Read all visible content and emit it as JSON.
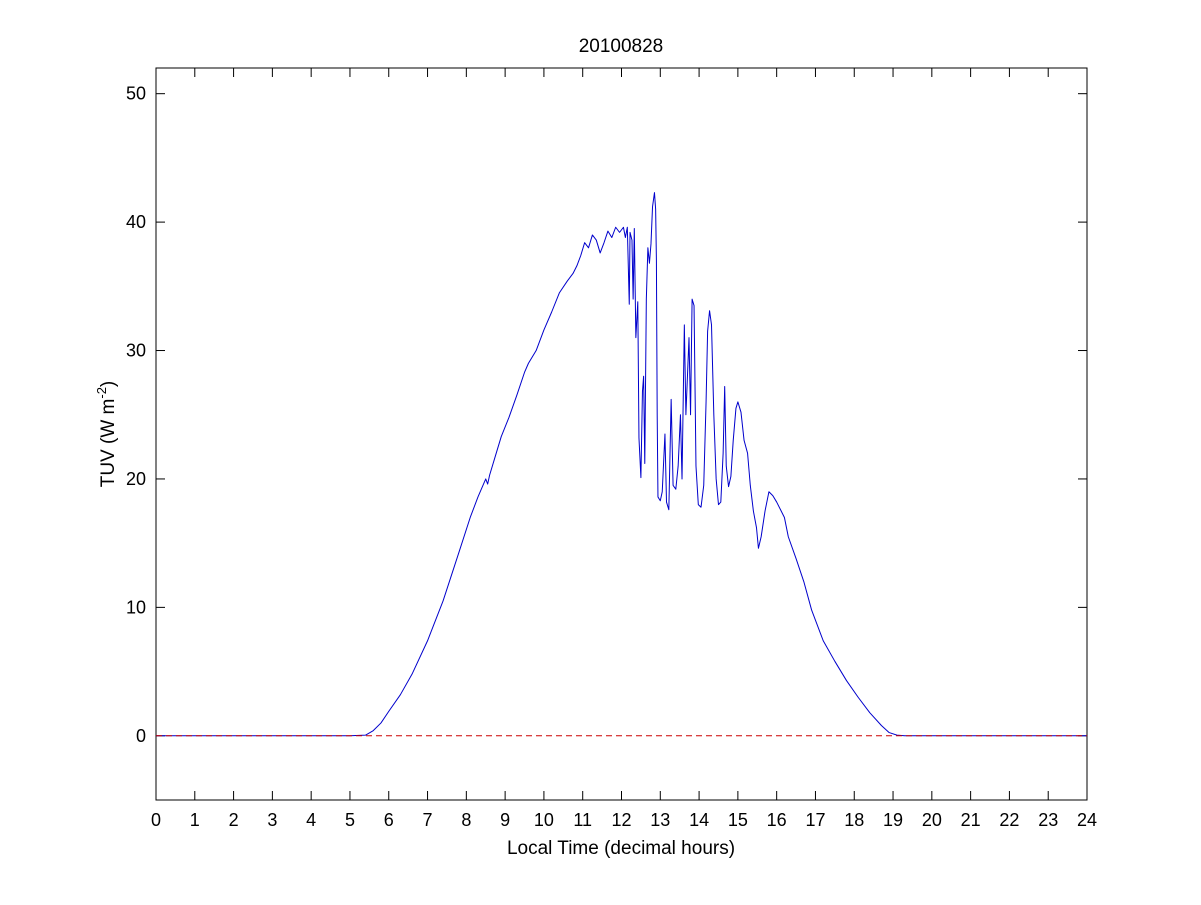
{
  "chart_data": {
    "type": "line",
    "title": "20100828",
    "xlabel": "Local Time (decimal hours)",
    "ylabel_main": "TUV (W m",
    "ylabel_sup": "-2",
    "ylabel_close": ")",
    "xlim": [
      0,
      24
    ],
    "ylim": [
      -5,
      52
    ],
    "x_ticks": [
      0,
      1,
      2,
      3,
      4,
      5,
      6,
      7,
      8,
      9,
      10,
      11,
      12,
      13,
      14,
      15,
      16,
      17,
      18,
      19,
      20,
      21,
      22,
      23,
      24
    ],
    "x_tick_labels": [
      "0",
      "1",
      "2",
      "3",
      "4",
      "5",
      "6",
      "7",
      "8",
      "9",
      "10",
      "11",
      "12",
      "13",
      "14",
      "15",
      "16",
      "17",
      "18",
      "19",
      "20",
      "21",
      "22",
      "23",
      "24"
    ],
    "y_ticks": [
      0,
      10,
      20,
      30,
      40,
      50
    ],
    "y_tick_labels": [
      "0",
      "10",
      "20",
      "30",
      "40",
      "50"
    ],
    "grid": false,
    "series": [
      {
        "color": "#0000cc",
        "style": "solid",
        "points": [
          [
            0,
            0
          ],
          [
            5.0,
            0
          ],
          [
            5.4,
            0.05
          ],
          [
            5.6,
            0.4
          ],
          [
            5.8,
            1.0
          ],
          [
            6.0,
            1.9
          ],
          [
            6.3,
            3.2
          ],
          [
            6.6,
            4.8
          ],
          [
            7.0,
            7.4
          ],
          [
            7.4,
            10.5
          ],
          [
            7.8,
            14.2
          ],
          [
            8.1,
            17.0
          ],
          [
            8.3,
            18.6
          ],
          [
            8.5,
            20.0
          ],
          [
            8.55,
            19.6
          ],
          [
            8.6,
            20.3
          ],
          [
            8.75,
            21.8
          ],
          [
            8.9,
            23.3
          ],
          [
            9.1,
            24.8
          ],
          [
            9.3,
            26.5
          ],
          [
            9.5,
            28.3
          ],
          [
            9.6,
            29.0
          ],
          [
            9.8,
            30.0
          ],
          [
            10.0,
            31.6
          ],
          [
            10.2,
            33.0
          ],
          [
            10.4,
            34.5
          ],
          [
            10.6,
            35.4
          ],
          [
            10.75,
            36.0
          ],
          [
            10.85,
            36.6
          ],
          [
            10.95,
            37.4
          ],
          [
            11.05,
            38.4
          ],
          [
            11.15,
            38.0
          ],
          [
            11.25,
            39.0
          ],
          [
            11.35,
            38.6
          ],
          [
            11.45,
            37.6
          ],
          [
            11.55,
            38.4
          ],
          [
            11.65,
            39.3
          ],
          [
            11.75,
            38.8
          ],
          [
            11.85,
            39.6
          ],
          [
            11.95,
            39.2
          ],
          [
            12.05,
            39.6
          ],
          [
            12.1,
            38.8
          ],
          [
            12.15,
            39.6
          ],
          [
            12.2,
            33.6
          ],
          [
            12.22,
            39.2
          ],
          [
            12.27,
            38.6
          ],
          [
            12.3,
            34.0
          ],
          [
            12.33,
            39.5
          ],
          [
            12.37,
            31.0
          ],
          [
            12.42,
            33.8
          ],
          [
            12.45,
            23.2
          ],
          [
            12.5,
            20.1
          ],
          [
            12.54,
            26.8
          ],
          [
            12.57,
            28.0
          ],
          [
            12.6,
            21.2
          ],
          [
            12.64,
            34.0
          ],
          [
            12.68,
            38.0
          ],
          [
            12.72,
            36.8
          ],
          [
            12.76,
            38.3
          ],
          [
            12.8,
            41.2
          ],
          [
            12.85,
            42.3
          ],
          [
            12.88,
            41.0
          ],
          [
            12.9,
            37.0
          ],
          [
            12.92,
            25.0
          ],
          [
            12.94,
            18.6
          ],
          [
            13.0,
            18.3
          ],
          [
            13.05,
            19.0
          ],
          [
            13.12,
            23.5
          ],
          [
            13.16,
            18.2
          ],
          [
            13.22,
            17.6
          ],
          [
            13.28,
            26.2
          ],
          [
            13.33,
            19.5
          ],
          [
            13.4,
            19.2
          ],
          [
            13.46,
            21.0
          ],
          [
            13.52,
            25.0
          ],
          [
            13.56,
            20.0
          ],
          [
            13.62,
            32.0
          ],
          [
            13.66,
            25.0
          ],
          [
            13.7,
            28.0
          ],
          [
            13.74,
            31.0
          ],
          [
            13.78,
            25.0
          ],
          [
            13.82,
            34.0
          ],
          [
            13.87,
            33.5
          ],
          [
            13.92,
            21.0
          ],
          [
            13.98,
            18.0
          ],
          [
            14.05,
            17.8
          ],
          [
            14.12,
            19.5
          ],
          [
            14.18,
            26.0
          ],
          [
            14.22,
            31.5
          ],
          [
            14.27,
            33.1
          ],
          [
            14.32,
            32.0
          ],
          [
            14.38,
            25.0
          ],
          [
            14.44,
            20.0
          ],
          [
            14.5,
            18.0
          ],
          [
            14.56,
            18.2
          ],
          [
            14.62,
            22.0
          ],
          [
            14.66,
            27.2
          ],
          [
            14.7,
            21.0
          ],
          [
            14.76,
            19.4
          ],
          [
            14.82,
            20.2
          ],
          [
            14.88,
            23.0
          ],
          [
            14.95,
            25.5
          ],
          [
            15.0,
            26.0
          ],
          [
            15.08,
            25.2
          ],
          [
            15.16,
            23.0
          ],
          [
            15.25,
            22.0
          ],
          [
            15.32,
            19.5
          ],
          [
            15.4,
            17.5
          ],
          [
            15.48,
            16.2
          ],
          [
            15.53,
            14.6
          ],
          [
            15.6,
            15.5
          ],
          [
            15.7,
            17.5
          ],
          [
            15.8,
            19.0
          ],
          [
            15.9,
            18.7
          ],
          [
            16.0,
            18.2
          ],
          [
            16.1,
            17.6
          ],
          [
            16.2,
            17.0
          ],
          [
            16.3,
            15.5
          ],
          [
            16.5,
            13.8
          ],
          [
            16.7,
            12.0
          ],
          [
            16.9,
            9.8
          ],
          [
            17.2,
            7.4
          ],
          [
            17.5,
            5.8
          ],
          [
            17.8,
            4.3
          ],
          [
            18.1,
            3.0
          ],
          [
            18.4,
            1.8
          ],
          [
            18.7,
            0.8
          ],
          [
            18.9,
            0.25
          ],
          [
            19.1,
            0.05
          ],
          [
            19.3,
            0
          ],
          [
            24,
            0
          ]
        ]
      },
      {
        "color": "#cc0000",
        "style": "dashed",
        "points": [
          [
            0,
            0
          ],
          [
            24,
            0
          ]
        ]
      }
    ]
  }
}
